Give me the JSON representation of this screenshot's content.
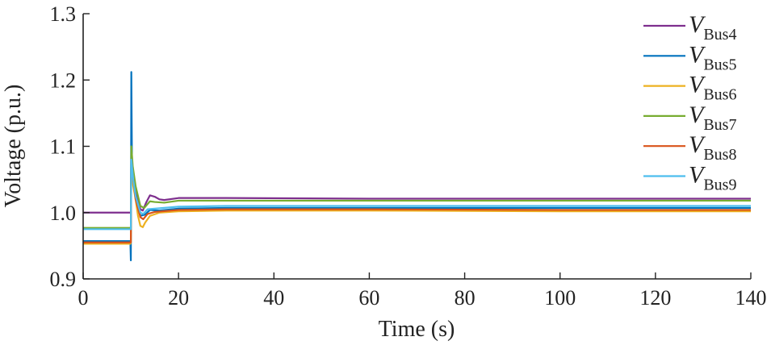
{
  "chart_data": {
    "type": "line",
    "title": "",
    "xlabel": "Time (s)",
    "ylabel": "Voltage (p.u.)",
    "xlim": [
      0,
      140
    ],
    "ylim": [
      0.9,
      1.3
    ],
    "xticks": [
      0,
      20,
      40,
      60,
      80,
      100,
      120,
      140
    ],
    "yticks": [
      0.9,
      1.0,
      1.1,
      1.2,
      1.3
    ],
    "ytick_labels": [
      "0.9",
      "1.0",
      "1.1",
      "1.2",
      "1.3"
    ],
    "grid": false,
    "legend_position": "top-right",
    "series": [
      {
        "name": "V_Bus4",
        "label_main": "V",
        "label_sub": "Bus4",
        "color": "#7e2f8e",
        "points": [
          [
            0,
            1.0
          ],
          [
            9.9,
            1.0
          ],
          [
            10,
            1.0
          ],
          [
            10.1,
            1.09
          ],
          [
            10.4,
            1.06
          ],
          [
            11,
            1.03
          ],
          [
            12,
            1.005
          ],
          [
            12.5,
            1.003
          ],
          [
            13.2,
            1.015
          ],
          [
            14,
            1.026
          ],
          [
            15,
            1.024
          ],
          [
            16,
            1.02
          ],
          [
            17,
            1.019
          ],
          [
            20,
            1.022
          ],
          [
            30,
            1.022
          ],
          [
            60,
            1.021
          ],
          [
            100,
            1.021
          ],
          [
            140,
            1.021
          ]
        ]
      },
      {
        "name": "V_Bus5",
        "label_main": "V",
        "label_sub": "Bus5",
        "color": "#0072bd",
        "points": [
          [
            0,
            0.957
          ],
          [
            9.9,
            0.957
          ],
          [
            10,
            0.928
          ],
          [
            10.1,
            1.212
          ],
          [
            10.25,
            1.06
          ],
          [
            10.6,
            1.04
          ],
          [
            11,
            1.025
          ],
          [
            12,
            0.995
          ],
          [
            13,
            0.997
          ],
          [
            14,
            1.004
          ],
          [
            16,
            1.003
          ],
          [
            20,
            1.006
          ],
          [
            30,
            1.007
          ],
          [
            60,
            1.007
          ],
          [
            100,
            1.007
          ],
          [
            140,
            1.007
          ]
        ]
      },
      {
        "name": "V_Bus6",
        "label_main": "V",
        "label_sub": "Bus6",
        "color": "#edb120",
        "points": [
          [
            0,
            0.953
          ],
          [
            9.9,
            0.953
          ],
          [
            10,
            0.955
          ],
          [
            10.1,
            1.07
          ],
          [
            10.5,
            1.04
          ],
          [
            11,
            1.02
          ],
          [
            11.5,
            0.995
          ],
          [
            12,
            0.98
          ],
          [
            12.5,
            0.978
          ],
          [
            13,
            0.985
          ],
          [
            14,
            0.995
          ],
          [
            16,
            1.0
          ],
          [
            20,
            1.002
          ],
          [
            30,
            1.003
          ],
          [
            60,
            1.003
          ],
          [
            100,
            1.002
          ],
          [
            140,
            1.002
          ]
        ]
      },
      {
        "name": "V_Bus7",
        "label_main": "V",
        "label_sub": "Bus7",
        "color": "#77ac30",
        "points": [
          [
            0,
            0.977
          ],
          [
            9.9,
            0.977
          ],
          [
            10,
            0.977
          ],
          [
            10.1,
            1.1
          ],
          [
            10.4,
            1.07
          ],
          [
            11,
            1.04
          ],
          [
            12,
            1.01
          ],
          [
            12.8,
            1.007
          ],
          [
            14,
            1.017
          ],
          [
            15,
            1.016
          ],
          [
            17,
            1.015
          ],
          [
            20,
            1.018
          ],
          [
            30,
            1.018
          ],
          [
            60,
            1.018
          ],
          [
            100,
            1.018
          ],
          [
            140,
            1.018
          ]
        ]
      },
      {
        "name": "V_Bus8",
        "label_main": "V",
        "label_sub": "Bus8",
        "color": "#d95319",
        "points": [
          [
            0,
            0.955
          ],
          [
            9.9,
            0.955
          ],
          [
            10,
            0.955
          ],
          [
            10.1,
            1.08
          ],
          [
            10.5,
            1.05
          ],
          [
            11,
            1.02
          ],
          [
            12,
            0.993
          ],
          [
            12.6,
            0.99
          ],
          [
            13.5,
            0.998
          ],
          [
            15,
            1.001
          ],
          [
            20,
            1.004
          ],
          [
            30,
            1.005
          ],
          [
            60,
            1.005
          ],
          [
            100,
            1.004
          ],
          [
            140,
            1.004
          ]
        ]
      },
      {
        "name": "V_Bus9",
        "label_main": "V",
        "label_sub": "Bus9",
        "color": "#4dbeee",
        "points": [
          [
            0,
            0.975
          ],
          [
            9.9,
            0.975
          ],
          [
            10,
            0.975
          ],
          [
            10.1,
            1.08
          ],
          [
            10.5,
            1.05
          ],
          [
            11,
            1.025
          ],
          [
            12,
            1.0
          ],
          [
            12.6,
            0.998
          ],
          [
            13.5,
            1.005
          ],
          [
            15,
            1.006
          ],
          [
            20,
            1.009
          ],
          [
            30,
            1.01
          ],
          [
            60,
            1.01
          ],
          [
            100,
            1.01
          ],
          [
            140,
            1.01
          ]
        ]
      }
    ]
  }
}
